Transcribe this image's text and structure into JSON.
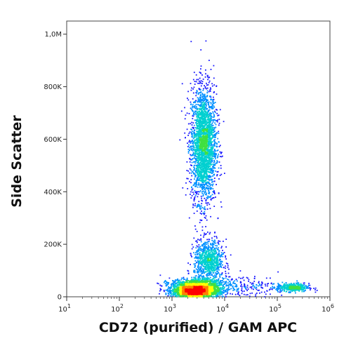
{
  "chart_data": {
    "type": "scatter",
    "subtype": "flow-cytometry-density-dot-plot",
    "xlabel": "CD72 (purified) / GAM APC",
    "ylabel": "Side Scatter",
    "x_scale": "log",
    "xlim": [
      10,
      1000000
    ],
    "ylim": [
      0,
      1050000
    ],
    "x_ticks": [
      {
        "value": 10,
        "base": "10",
        "exp": "1"
      },
      {
        "value": 100,
        "base": "10",
        "exp": "2"
      },
      {
        "value": 1000,
        "base": "10",
        "exp": "3"
      },
      {
        "value": 10000,
        "base": "10",
        "exp": "4"
      },
      {
        "value": 100000,
        "base": "10",
        "exp": "5"
      },
      {
        "value": 1000000,
        "base": "10",
        "exp": "6"
      }
    ],
    "y_ticks": [
      {
        "value": 0,
        "label": "0"
      },
      {
        "value": 200000,
        "label": "200K"
      },
      {
        "value": 400000,
        "label": "400K"
      },
      {
        "value": 600000,
        "label": "600K"
      },
      {
        "value": 800000,
        "label": "800K"
      },
      {
        "value": 1000000,
        "label": "1,0M"
      }
    ],
    "populations": [
      {
        "x_center": 4000,
        "y_center": 580000,
        "x_spread_log": 0.12,
        "y_spread": 110000,
        "count": 2600
      },
      {
        "x_center": 5000,
        "y_center": 135000,
        "x_spread_log": 0.14,
        "y_spread": 40000,
        "count": 900
      },
      {
        "x_center": 2800,
        "y_center": 20000,
        "x_spread_log": 0.22,
        "y_spread": 9000,
        "count": 2200
      },
      {
        "x_center": 3000,
        "y_center": 48000,
        "x_spread_log": 0.25,
        "y_spread": 10000,
        "count": 900
      },
      {
        "x_center": 200000,
        "y_center": 35000,
        "x_spread_log": 0.15,
        "y_spread": 8000,
        "count": 420
      },
      {
        "x_center": 20000,
        "y_center": 40000,
        "x_spread_log": 0.45,
        "y_spread": 20000,
        "count": 260
      }
    ],
    "density_colors": [
      "#1a1aff",
      "#0090ff",
      "#00d0d0",
      "#40e040",
      "#ffff00",
      "#ff8000",
      "#ff0000"
    ],
    "grid": false,
    "legend": "none"
  }
}
